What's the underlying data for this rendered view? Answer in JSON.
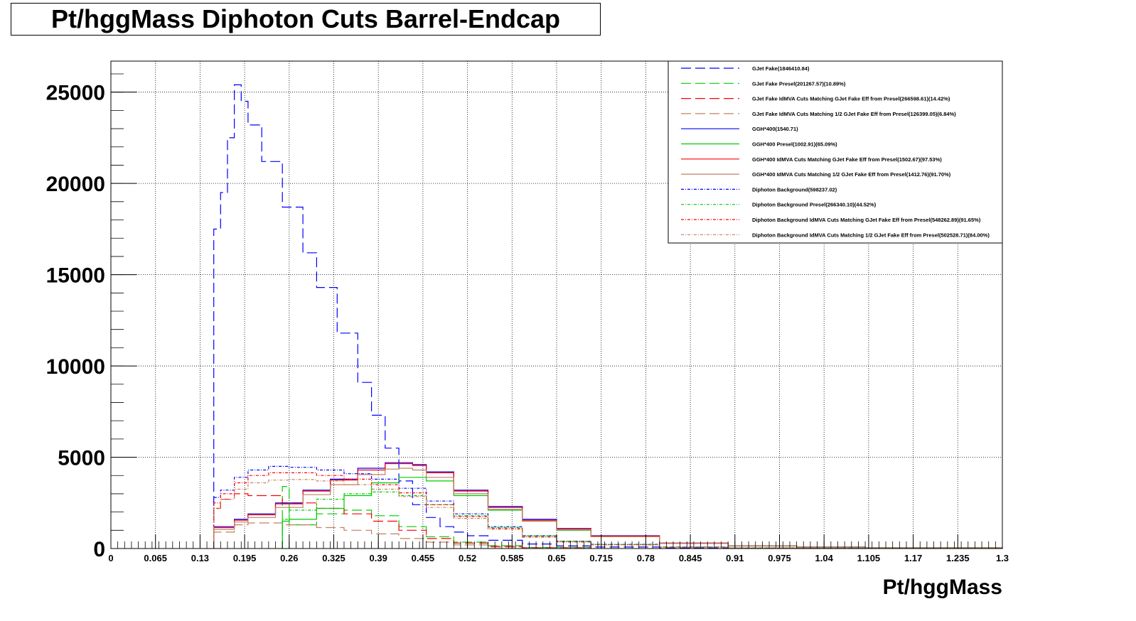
{
  "chart_data": {
    "type": "line",
    "title": "Pt/hggMass Diphoton Cuts Barrel-Endcap",
    "xlabel": "Pt/hggMass",
    "ylabel": "",
    "xlim": [
      0,
      1.3
    ],
    "ylim": [
      0,
      26700
    ],
    "grid": true,
    "legend_position": "top-right",
    "x_ticks": [
      "0",
      "0.065",
      "0.13",
      "0.195",
      "0.26",
      "0.325",
      "0.39",
      "0.455",
      "0.52",
      "0.585",
      "0.65",
      "0.715",
      "0.78",
      "0.845",
      "0.91",
      "0.975",
      "1.04",
      "1.105",
      "1.17",
      "1.235",
      "1.3"
    ],
    "y_ticks": [
      "0",
      "5000",
      "10000",
      "15000",
      "20000",
      "25000"
    ],
    "series": [
      {
        "name": "GJet Fake(1846410.84)",
        "color": "#0000ff",
        "dash": "long",
        "x": [
          0.15,
          0.16,
          0.17,
          0.18,
          0.19,
          0.2,
          0.22,
          0.25,
          0.28,
          0.3,
          0.33,
          0.36,
          0.38,
          0.4,
          0.42,
          0.44,
          0.46,
          0.48,
          0.5,
          0.52,
          0.55,
          0.6,
          0.65,
          0.7,
          0.8,
          0.9,
          1.0,
          1.1,
          1.3
        ],
        "y": [
          17500,
          19500,
          22500,
          25400,
          24500,
          23200,
          21200,
          18700,
          16200,
          14300,
          11800,
          9100,
          7300,
          5500,
          3700,
          2400,
          1700,
          1200,
          900,
          700,
          450,
          250,
          140,
          80,
          30,
          12,
          5,
          2,
          0
        ]
      },
      {
        "name": "GJet Fake Presel(201267.57)(10.89%)",
        "color": "#00cc00",
        "dash": "long",
        "x": [
          0.25,
          0.26,
          0.3,
          0.34,
          0.38,
          0.42,
          0.46,
          0.5,
          0.55,
          0.6,
          0.7
        ],
        "y": [
          3400,
          1300,
          1900,
          2100,
          1800,
          1200,
          650,
          350,
          150,
          60,
          10
        ]
      },
      {
        "name": "GJet Fake IdMVA Cuts Matching GJet Fake Eff from Presel(266598.61)(14.42%)",
        "color": "#ff0000",
        "dash": "long",
        "x": [
          0.15,
          0.16,
          0.18,
          0.2,
          0.25,
          0.3,
          0.34,
          0.38,
          0.42,
          0.46,
          0.5,
          0.55,
          0.6,
          0.7
        ],
        "y": [
          2200,
          2700,
          3000,
          2900,
          2500,
          2200,
          1900,
          1500,
          1000,
          550,
          300,
          120,
          50,
          10
        ]
      },
      {
        "name": "GJet Fake IdMVA Cuts Matching 1/2 GJet Fake Eff from Presel(126399.05)(6.84%)",
        "color": "#c08060",
        "dash": "long",
        "x": [
          0.15,
          0.18,
          0.2,
          0.25,
          0.3,
          0.34,
          0.38,
          0.42,
          0.46,
          0.5,
          0.55,
          0.6,
          0.7
        ],
        "y": [
          900,
          1300,
          1400,
          1300,
          1150,
          1000,
          800,
          550,
          350,
          200,
          80,
          30,
          5
        ]
      },
      {
        "name": "GGH*400(1540.71)",
        "color": "#0000ff",
        "dash": "solid",
        "x": [
          0.15,
          0.18,
          0.2,
          0.24,
          0.28,
          0.32,
          0.36,
          0.4,
          0.42,
          0.44,
          0.46,
          0.5,
          0.55,
          0.6,
          0.65,
          0.7,
          0.8,
          0.9,
          1.0,
          1.1,
          1.3
        ],
        "y": [
          1200,
          1600,
          1900,
          2500,
          3200,
          3800,
          4400,
          4700,
          4700,
          4600,
          4200,
          3200,
          2300,
          1600,
          1100,
          700,
          300,
          150,
          80,
          40,
          10
        ]
      },
      {
        "name": "GGH*400 Presel(1002.91)(65.09%)",
        "color": "#00cc00",
        "dash": "solid",
        "x": [
          0.25,
          0.26,
          0.3,
          0.34,
          0.38,
          0.42,
          0.44,
          0.46,
          0.5,
          0.55,
          0.6,
          0.65,
          0.7,
          0.8,
          0.9,
          1.0,
          1.1,
          1.3
        ],
        "y": [
          1500,
          1600,
          2200,
          2900,
          3600,
          3900,
          3900,
          3700,
          2900,
          2100,
          1500,
          1000,
          650,
          280,
          130,
          70,
          35,
          8
        ]
      },
      {
        "name": "GGH*400 IdMVA Cuts Matching GJet Fake Eff from Presel(1502.67)(97.53%)",
        "color": "#ff0000",
        "dash": "solid",
        "x": [
          0.15,
          0.18,
          0.2,
          0.24,
          0.28,
          0.32,
          0.36,
          0.4,
          0.42,
          0.44,
          0.46,
          0.5,
          0.55,
          0.6,
          0.65,
          0.7,
          0.8,
          0.9,
          1.0,
          1.1,
          1.3
        ],
        "y": [
          1150,
          1550,
          1850,
          2450,
          3150,
          3750,
          4300,
          4650,
          4650,
          4550,
          4150,
          3150,
          2250,
          1550,
          1080,
          680,
          290,
          145,
          78,
          38,
          10
        ]
      },
      {
        "name": "GGH*400 IdMVA Cuts Matching 1/2 GJet Fake Eff from Presel(1412.76)(91.70%)",
        "color": "#c08060",
        "dash": "solid",
        "x": [
          0.15,
          0.18,
          0.2,
          0.24,
          0.28,
          0.32,
          0.36,
          0.4,
          0.42,
          0.44,
          0.46,
          0.5,
          0.55,
          0.6,
          0.65,
          0.7,
          0.8,
          0.9,
          1.0,
          1.1,
          1.3
        ],
        "y": [
          1050,
          1450,
          1700,
          2250,
          2950,
          3500,
          4050,
          4350,
          4400,
          4300,
          3900,
          3000,
          2150,
          1500,
          1030,
          650,
          275,
          140,
          75,
          36,
          9
        ]
      },
      {
        "name": "Diphoton Background(598237.02)",
        "color": "#0000ff",
        "dash": "dashdot",
        "x": [
          0.15,
          0.16,
          0.18,
          0.2,
          0.23,
          0.26,
          0.3,
          0.34,
          0.38,
          0.42,
          0.46,
          0.5,
          0.55,
          0.6,
          0.65,
          0.7,
          0.8,
          0.9,
          1.0,
          1.3
        ],
        "y": [
          2800,
          3200,
          3900,
          4300,
          4500,
          4450,
          4300,
          4100,
          3800,
          3300,
          2600,
          1900,
          1200,
          700,
          400,
          230,
          80,
          30,
          12,
          2
        ]
      },
      {
        "name": "Diphoton Background Presel(266340.10)(44.52%)",
        "color": "#00cc00",
        "dash": "dashdot",
        "x": [
          0.25,
          0.26,
          0.3,
          0.34,
          0.38,
          0.42,
          0.46,
          0.5,
          0.55,
          0.6,
          0.65,
          0.7,
          0.8,
          0.9,
          1.3
        ],
        "y": [
          1600,
          2100,
          2700,
          3000,
          3100,
          2900,
          2400,
          1800,
          1150,
          700,
          400,
          220,
          80,
          30,
          2
        ]
      },
      {
        "name": "Diphoton Background IdMVA Cuts Matching GJet Fake Eff from Presel(548262.89)(91.65%)",
        "color": "#ff0000",
        "dash": "dashdot",
        "x": [
          0.15,
          0.16,
          0.18,
          0.2,
          0.23,
          0.26,
          0.3,
          0.34,
          0.38,
          0.42,
          0.46,
          0.5,
          0.55,
          0.6,
          0.65,
          0.7,
          0.8,
          0.9,
          1.0,
          1.3
        ],
        "y": [
          2500,
          3000,
          3600,
          4000,
          4150,
          4150,
          4000,
          3800,
          3500,
          3050,
          2400,
          1750,
          1100,
          650,
          370,
          210,
          75,
          28,
          10,
          2
        ]
      },
      {
        "name": "Diphoton Background IdMVA Cuts Matching 1/2 GJet Fake Eff from Presel(502528.71)(84.00%)",
        "color": "#c08060",
        "dash": "dashdot",
        "x": [
          0.15,
          0.16,
          0.18,
          0.2,
          0.23,
          0.26,
          0.3,
          0.34,
          0.38,
          0.42,
          0.46,
          0.5,
          0.55,
          0.6,
          0.65,
          0.7,
          0.8,
          0.9,
          1.0,
          1.3
        ],
        "y": [
          2200,
          2700,
          3250,
          3600,
          3750,
          3780,
          3700,
          3500,
          3250,
          2850,
          2250,
          1650,
          1050,
          620,
          350,
          200,
          70,
          26,
          9,
          2
        ]
      }
    ]
  }
}
